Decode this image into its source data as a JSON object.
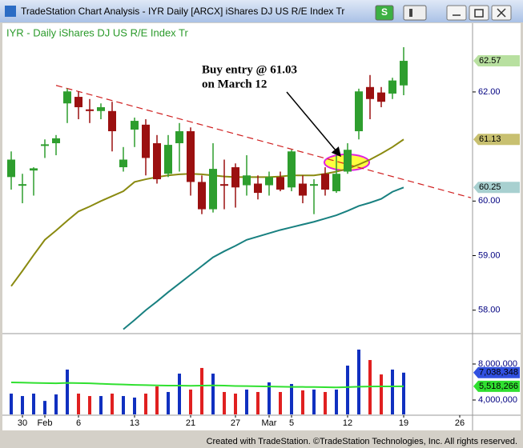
{
  "window": {
    "title": "TradeStation Chart Analysis - IYR Daily [ARCX] iShares DJ US R/E Index Tr",
    "button": "S"
  },
  "footer": "Created with TradeStation. ©TradeStation Technologies, Inc. All rights reserved.",
  "chart_data": [
    {
      "type": "candlestick",
      "title": "IYR - Daily  iShares DJ US R/E Index Tr",
      "categories": [
        null,
        "30",
        null,
        "Feb",
        null,
        null,
        "6",
        null,
        null,
        null,
        null,
        "13",
        null,
        null,
        null,
        null,
        "21",
        null,
        null,
        null,
        "27",
        null,
        null,
        "Mar",
        null,
        "5",
        null,
        null,
        null,
        null,
        "12",
        null,
        null,
        null,
        null,
        "19",
        null,
        null,
        null,
        null,
        "26"
      ],
      "open": [
        60.44,
        60.29,
        60.56,
        61.02,
        61.06,
        61.79,
        61.91,
        61.68,
        61.65,
        61.65,
        60.62,
        61.31,
        61.4,
        61.06,
        60.5,
        61.06,
        61.28,
        60.35,
        59.85,
        60.31,
        60.62,
        60.29,
        60.32,
        60.29,
        60.44,
        60.25,
        60.32,
        60.29,
        60.5,
        60.18,
        60.54,
        61.28,
        62.09,
        61.99,
        61.97,
        62.12,
        null,
        null,
        null,
        null,
        null
      ],
      "high": [
        60.91,
        60.5,
        60.62,
        61.13,
        61.21,
        62.06,
        62.01,
        61.87,
        61.79,
        61.82,
        60.99,
        61.53,
        61.5,
        61.21,
        61.21,
        61.43,
        61.35,
        60.47,
        61.06,
        60.76,
        60.69,
        60.84,
        60.47,
        60.54,
        60.54,
        60.94,
        60.47,
        60.4,
        60.62,
        60.84,
        61.06,
        62.06,
        62.31,
        62.09,
        62.26,
        62.82,
        null,
        null,
        null,
        null,
        null
      ],
      "low": [
        60.21,
        59.96,
        60.1,
        60.79,
        60.84,
        61.43,
        61.5,
        61.43,
        61.5,
        60.91,
        60.54,
        60.99,
        60.47,
        60.32,
        60.44,
        60.54,
        60.1,
        59.76,
        59.79,
        59.85,
        59.88,
        60.1,
        60.03,
        60.1,
        60.18,
        60.18,
        59.96,
        59.76,
        60.1,
        60.15,
        60.5,
        61.13,
        61.5,
        61.72,
        61.87,
        61.94,
        null,
        null,
        null,
        null,
        null
      ],
      "close": [
        60.76,
        60.31,
        60.6,
        61.04,
        61.15,
        62.01,
        61.72,
        61.65,
        61.72,
        61.28,
        60.76,
        61.47,
        60.79,
        60.4,
        61.03,
        61.28,
        60.35,
        59.85,
        60.59,
        60.29,
        60.25,
        60.47,
        60.15,
        60.44,
        60.21,
        60.91,
        60.1,
        60.31,
        60.21,
        60.5,
        60.94,
        62.01,
        61.87,
        61.82,
        62.21,
        62.57,
        null,
        null,
        null,
        null,
        null
      ],
      "up_color": "#2e9e2e",
      "down_color": "#9b1010",
      "series": [
        {
          "color": "#8a8a10",
          "values": [
            58.44,
            58.72,
            59.01,
            59.29,
            59.46,
            59.64,
            59.81,
            59.9,
            60.0,
            60.09,
            60.18,
            60.35,
            60.4,
            60.44,
            60.47,
            60.49,
            60.5,
            60.49,
            60.47,
            60.45,
            60.44,
            60.44,
            60.44,
            60.44,
            60.45,
            60.47,
            60.47,
            60.47,
            60.5,
            60.54,
            60.59,
            60.67,
            60.76,
            60.87,
            60.99,
            61.13,
            null,
            null,
            null,
            null,
            null
          ]
        },
        {
          "color": "#188080",
          "values": [
            null,
            null,
            null,
            null,
            null,
            null,
            null,
            null,
            null,
            null,
            57.65,
            57.82,
            58.0,
            58.16,
            58.33,
            58.49,
            58.65,
            58.81,
            58.97,
            59.08,
            59.18,
            59.29,
            59.35,
            59.41,
            59.47,
            59.52,
            59.57,
            59.62,
            59.68,
            59.74,
            59.82,
            59.91,
            59.97,
            60.04,
            60.17,
            60.25,
            null,
            null,
            null,
            null,
            null
          ]
        }
      ],
      "trendline": {
        "color": "#d02020",
        "x": [
          4,
          41
        ],
        "values": [
          62.12,
          60.06
        ]
      },
      "annotation": [
        "Buy entry @ 61.03",
        "on March 12"
      ],
      "ylim": [
        57.6,
        63.26
      ],
      "yticks": [
        {
          "value": 58,
          "label": "58.00"
        },
        {
          "value": 59,
          "label": "59.00"
        },
        {
          "value": 60,
          "label": "60.00"
        },
        {
          "value": 62,
          "label": "62.00"
        }
      ],
      "last_tags": [
        {
          "value": 62.57,
          "color": "#b8e0a0"
        },
        {
          "value": 61.13,
          "color": "#c8c070"
        },
        {
          "value": 60.25,
          "color": "#a8d0d0"
        }
      ]
    },
    {
      "type": "volume",
      "values": [
        4710000,
        4440000,
        4710000,
        3900000,
        4620000,
        7380000,
        4710000,
        4440000,
        4440000,
        4710000,
        4440000,
        4270000,
        4710000,
        5510000,
        4890000,
        6930000,
        5160000,
        7560000,
        6930000,
        4890000,
        4710000,
        5160000,
        4890000,
        5960000,
        4890000,
        5780000,
        5070000,
        5160000,
        4890000,
        5160000,
        7820000,
        9600000,
        8440000,
        6840000,
        7380000,
        7038348,
        null,
        null,
        null,
        null,
        null
      ],
      "up_color": "#1030c0",
      "down_color": "#e02020",
      "series": [
        {
          "color": "#30e030",
          "values": [
            5950000,
            5930000,
            5900000,
            5880000,
            5850000,
            5900000,
            5880000,
            5850000,
            5800000,
            5760000,
            5720000,
            5680000,
            5650000,
            5620000,
            5600000,
            5600000,
            5580000,
            5600000,
            5620000,
            5600000,
            5560000,
            5540000,
            5520000,
            5500000,
            5480000,
            5460000,
            5450000,
            5440000,
            5420000,
            5400000,
            5430000,
            5480000,
            5500000,
            5510000,
            5515000,
            5518266,
            null,
            null,
            null,
            null,
            null
          ]
        }
      ],
      "ylim": [
        2400000,
        11110000
      ],
      "yticks": [
        {
          "value": 4000000,
          "label": "4,000,000"
        },
        {
          "value": 8000000,
          "label": "8,000,000"
        }
      ],
      "last_tags": [
        {
          "value": 7038348,
          "label": "7,038,348",
          "color": "#3050e0"
        },
        {
          "value": 5518266,
          "label": "5,518,266",
          "color": "#30e030"
        }
      ]
    }
  ]
}
